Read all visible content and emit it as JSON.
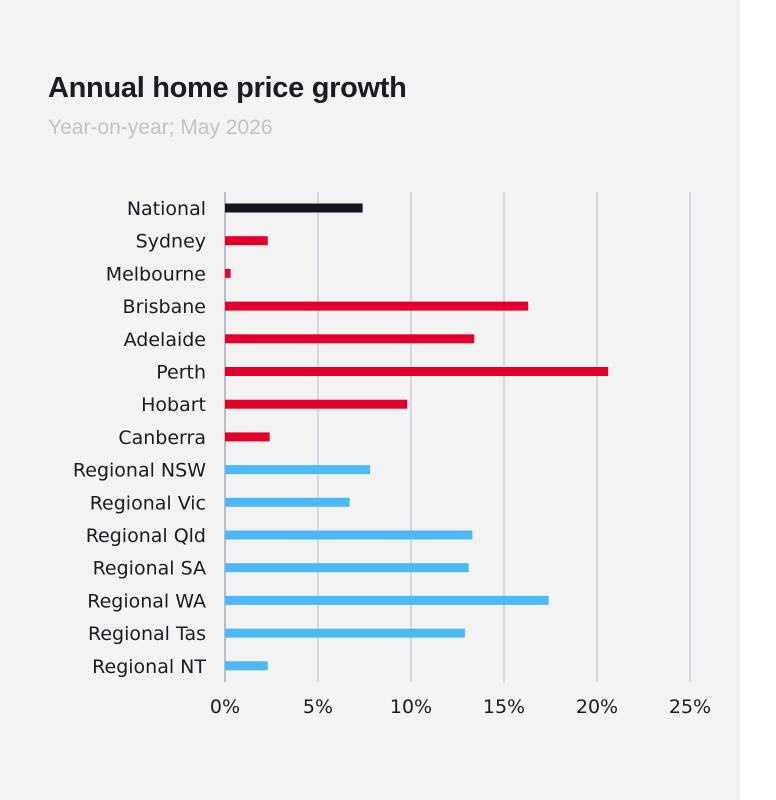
{
  "header": {
    "title": "Annual home price growth",
    "subtitle": "Year-on-year; May 2026"
  },
  "colors": {
    "background": "#f3f3f3",
    "national": "#16161f",
    "capital": "#e0002b",
    "regional": "#4cb9f4",
    "grid": "#d7d7df"
  },
  "chart_data": {
    "type": "bar",
    "orientation": "horizontal",
    "title": "Annual home price growth",
    "subtitle": "Year-on-year; May 2026",
    "xlim": [
      0,
      25
    ],
    "xticks": [
      "0%",
      "5%",
      "10%",
      "15%",
      "20%",
      "25%"
    ],
    "grid": true,
    "categories": [
      "National",
      "Sydney",
      "Melbourne",
      "Brisbane",
      "Adelaide",
      "Perth",
      "Hobart",
      "Canberra",
      "Regional NSW",
      "Regional Vic",
      "Regional Qld",
      "Regional SA",
      "Regional WA",
      "Regional Tas",
      "Regional NT"
    ],
    "values": [
      7.4,
      2.3,
      0.3,
      16.3,
      13.4,
      20.6,
      9.8,
      2.4,
      7.8,
      6.7,
      13.3,
      13.1,
      17.4,
      12.9,
      2.3
    ],
    "groups": [
      "national",
      "capital",
      "capital",
      "capital",
      "capital",
      "capital",
      "capital",
      "capital",
      "regional",
      "regional",
      "regional",
      "regional",
      "regional",
      "regional",
      "regional"
    ]
  }
}
